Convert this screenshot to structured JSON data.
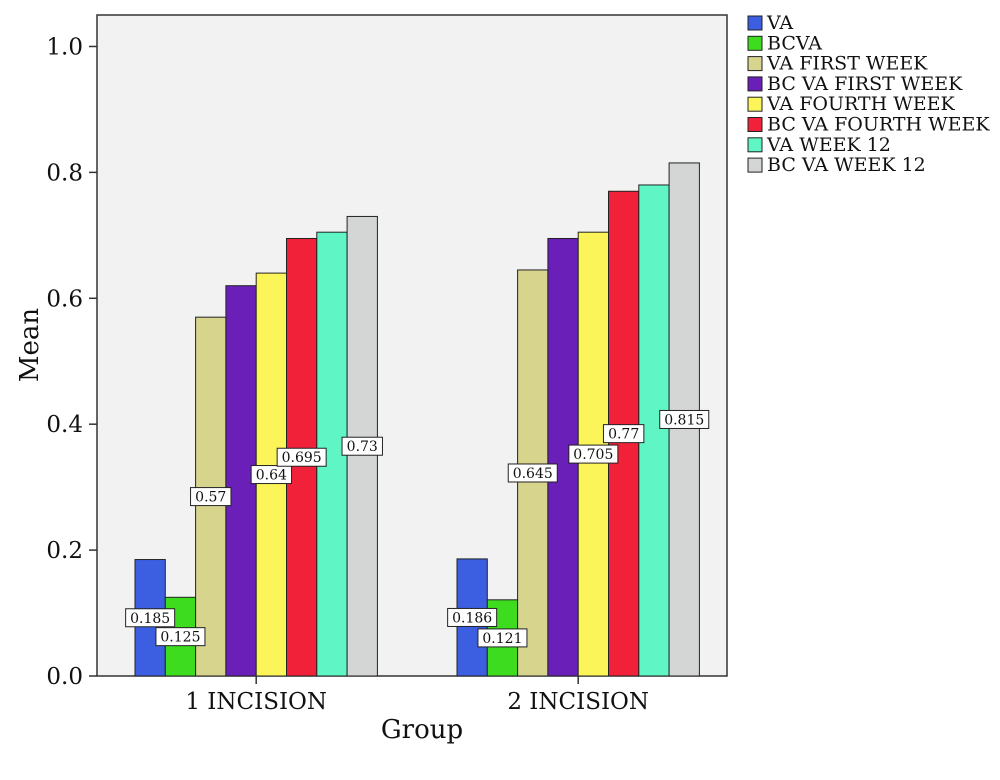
{
  "chart_data": {
    "type": "bar",
    "xlabel": "Group",
    "ylabel": "Mean",
    "ylim": [
      0,
      1.05
    ],
    "yticks": [
      "0.0",
      "0.2",
      "0.4",
      "0.6",
      "0.8",
      "1.0"
    ],
    "grid": false,
    "legend_position": "right",
    "categories": [
      "1 INCISION",
      "2 INCISION"
    ],
    "series": [
      {
        "name": "VA",
        "color": "#3b5fe0",
        "values": [
          0.185,
          0.186
        ],
        "labels": [
          "0.185",
          "0.186"
        ]
      },
      {
        "name": "BCVA",
        "color": "#3ddc1f",
        "values": [
          0.125,
          0.121
        ],
        "labels": [
          "0.125",
          "0.121"
        ]
      },
      {
        "name": "VA FIRST WEEK",
        "color": "#d7d48e",
        "values": [
          0.57,
          0.645
        ],
        "labels": [
          "0.57",
          "0.645"
        ]
      },
      {
        "name": "BC VA FIRST WEEK",
        "color": "#6a1fb8",
        "values": [
          0.62,
          0.695
        ],
        "labels": []
      },
      {
        "name": "VA FOURTH WEEK",
        "color": "#fbf55a",
        "values": [
          0.64,
          0.705
        ],
        "labels": [
          "0.64",
          "0.705"
        ]
      },
      {
        "name": "BC VA FOURTH WEEK",
        "color": "#f2213a",
        "values": [
          0.695,
          0.77
        ],
        "labels": [
          "0.695",
          "0.77"
        ]
      },
      {
        "name": "VA WEEK 12",
        "color": "#5ff5c5",
        "values": [
          0.705,
          0.78
        ],
        "labels": []
      },
      {
        "name": "BC VA WEEK 12",
        "color": "#d3d6d4",
        "values": [
          0.73,
          0.815
        ],
        "labels": [
          "0.73",
          "0.815"
        ]
      }
    ]
  }
}
